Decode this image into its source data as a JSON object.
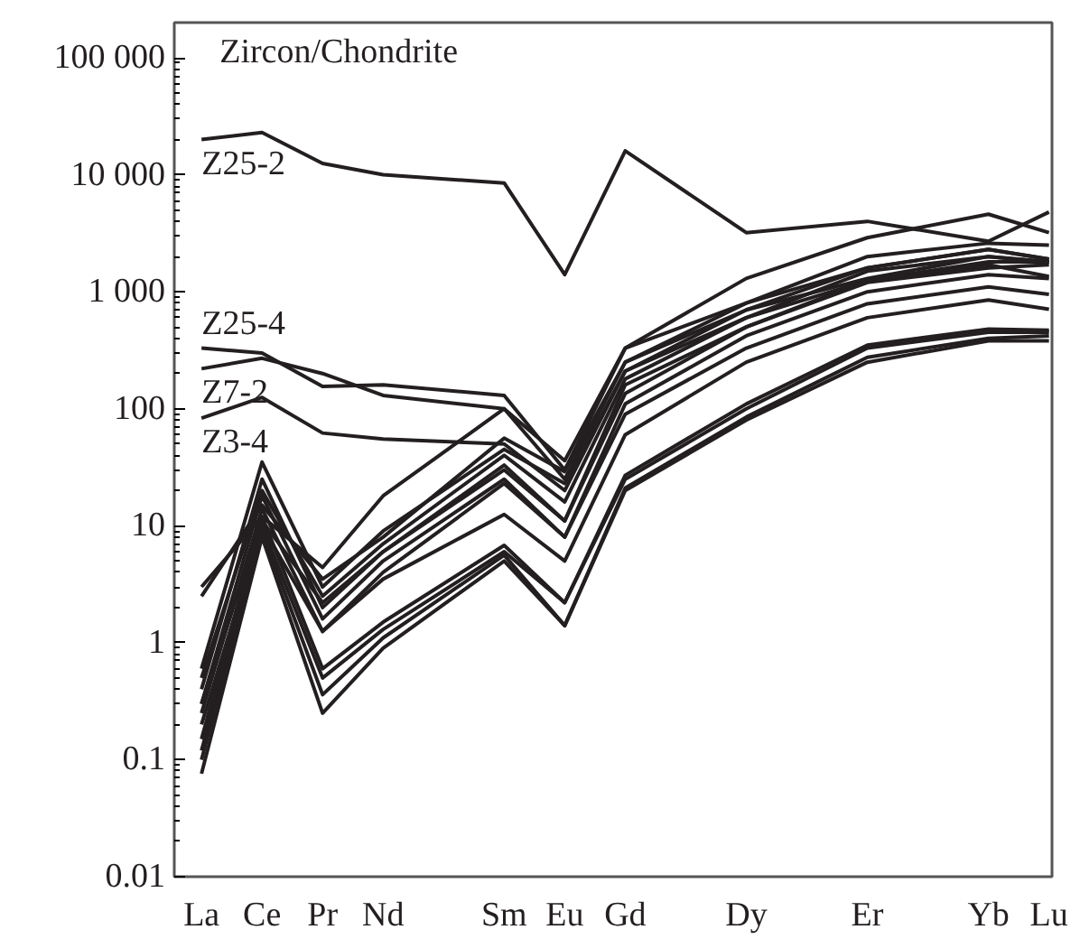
{
  "chart_data": {
    "type": "line",
    "title": "Zircon/Chondrite",
    "categories": [
      "La",
      "Ce",
      "Pr",
      "Nd",
      null,
      "Sm",
      "Eu",
      "Gd",
      null,
      "Dy",
      null,
      "Er",
      null,
      "Yb",
      "Lu"
    ],
    "log": "y",
    "ylim": [
      0.01,
      200000
    ],
    "yticks": [
      {
        "value": 0.01,
        "label": "0.01"
      },
      {
        "value": 0.1,
        "label": "0.1"
      },
      {
        "value": 1,
        "label": "1"
      },
      {
        "value": 10,
        "label": "10"
      },
      {
        "value": 100,
        "label": "100"
      },
      {
        "value": 1000,
        "label": "1 000"
      },
      {
        "value": 10000,
        "label": "10 000"
      },
      {
        "value": 100000,
        "label": "100 000"
      }
    ],
    "grid": false,
    "legend": false,
    "marker": "none",
    "line_style": "solid",
    "series": [
      {
        "name": "Z25-2",
        "color": "#231f20",
        "values": [
          20000,
          23000,
          12500,
          10000,
          null,
          8500,
          1400,
          16000,
          null,
          3200,
          null,
          4000,
          null,
          2700,
          4800
        ]
      },
      {
        "name": "Z25-4",
        "color": "#231f20",
        "values": [
          330,
          300,
          155,
          160,
          null,
          130,
          30,
          330,
          null,
          800,
          null,
          1600,
          null,
          2300,
          1900
        ]
      },
      {
        "name": "Z7-2",
        "color": "#231f20",
        "values": [
          220,
          270,
          200,
          130,
          null,
          100,
          25,
          250,
          null,
          700,
          null,
          1300,
          null,
          2000,
          1800
        ]
      },
      {
        "name": "Z3-4",
        "color": "#231f20",
        "values": [
          83,
          125,
          62,
          55,
          null,
          50,
          20,
          210,
          null,
          600,
          null,
          1250,
          null,
          1800,
          1800
        ]
      },
      {
        "color": "#231f20",
        "values": [
          3,
          12,
          4.4,
          18,
          null,
          100,
          36,
          330,
          null,
          1300,
          null,
          2900,
          null,
          4600,
          3200
        ]
      },
      {
        "color": "#231f20",
        "values": [
          2.5,
          15,
          3.5,
          8,
          null,
          56,
          29,
          250,
          null,
          800,
          null,
          2000,
          null,
          2600,
          2500
        ]
      },
      {
        "color": "#231f20",
        "values": [
          0.6,
          35,
          3,
          9,
          null,
          45,
          23,
          210,
          null,
          700,
          null,
          1600,
          null,
          2300,
          1900
        ]
      },
      {
        "color": "#231f20",
        "values": [
          0.5,
          20,
          2.5,
          7,
          null,
          40,
          16,
          180,
          null,
          600,
          null,
          1500,
          null,
          2000,
          1800
        ]
      },
      {
        "color": "#231f20",
        "values": [
          0.4,
          25,
          2,
          6,
          null,
          33,
          11,
          135,
          null,
          500,
          null,
          1250,
          null,
          1700,
          1350
        ]
      },
      {
        "color": "#231f20",
        "values": [
          0.3,
          18,
          1.6,
          5,
          null,
          25,
          8,
          110,
          null,
          420,
          null,
          1000,
          null,
          1400,
          1300
        ]
      },
      {
        "color": "#231f20",
        "values": [
          0.25,
          14,
          1.25,
          4,
          null,
          23,
          8,
          90,
          null,
          330,
          null,
          790,
          null,
          1100,
          950
        ]
      },
      {
        "color": "#231f20",
        "values": [
          0.2,
          10,
          1.25,
          3.5,
          null,
          12.5,
          5,
          60,
          null,
          250,
          null,
          600,
          null,
          850,
          710
        ]
      },
      {
        "color": "#231f20",
        "values": [
          0.15,
          12,
          0.6,
          1.5,
          null,
          6.8,
          2.2,
          27,
          null,
          110,
          null,
          350,
          null,
          480,
          470
        ]
      },
      {
        "color": "#231f20",
        "values": [
          0.12,
          10,
          0.5,
          1.3,
          null,
          6,
          2.2,
          25,
          null,
          100,
          null,
          330,
          null,
          450,
          450
        ]
      },
      {
        "color": "#231f20",
        "values": [
          0.1,
          9,
          0.36,
          1.1,
          null,
          5.6,
          1.4,
          21,
          null,
          85,
          null,
          275,
          null,
          400,
          420
        ]
      },
      {
        "color": "#231f20",
        "values": [
          0.076,
          8,
          0.25,
          0.9,
          null,
          5,
          1.4,
          20,
          null,
          80,
          null,
          250,
          null,
          380,
          380
        ]
      },
      {
        "color": "#231f20",
        "values": [
          0.3,
          11,
          2.2,
          6,
          null,
          30,
          11,
          160,
          null,
          500,
          null,
          1200,
          null,
          1600,
          1700
        ]
      }
    ]
  }
}
